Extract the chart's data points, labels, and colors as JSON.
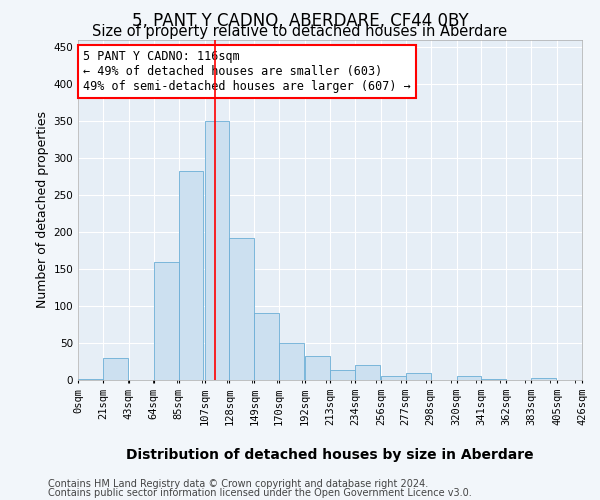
{
  "title": "5, PANT Y CADNO, ABERDARE, CF44 0BY",
  "subtitle": "Size of property relative to detached houses in Aberdare",
  "xlabel": "Distribution of detached houses by size in Aberdare",
  "ylabel": "Number of detached properties",
  "bar_values": [
    2,
    30,
    0,
    160,
    283,
    350,
    192,
    90,
    50,
    32,
    14,
    20,
    5,
    10,
    0,
    5,
    2,
    0,
    3
  ],
  "bin_edges": [
    0,
    21,
    43,
    64,
    85,
    107,
    128,
    149,
    170,
    192,
    213,
    234,
    256,
    277,
    298,
    320,
    341,
    362,
    383,
    405
  ],
  "tick_labels": [
    "0sqm",
    "21sqm",
    "43sqm",
    "64sqm",
    "85sqm",
    "107sqm",
    "128sqm",
    "149sqm",
    "170sqm",
    "192sqm",
    "213sqm",
    "234sqm",
    "256sqm",
    "277sqm",
    "298sqm",
    "320sqm",
    "341sqm",
    "362sqm",
    "383sqm",
    "405sqm",
    "426sqm"
  ],
  "bar_color": "#cce0f0",
  "bar_edge_color": "#6baed6",
  "vline_x": 116,
  "vline_color": "red",
  "ylim": [
    0,
    460
  ],
  "yticks": [
    0,
    50,
    100,
    150,
    200,
    250,
    300,
    350,
    400,
    450
  ],
  "annotation_title": "5 PANT Y CADNO: 116sqm",
  "annotation_line1": "← 49% of detached houses are smaller (603)",
  "annotation_line2": "49% of semi-detached houses are larger (607) →",
  "annotation_box_color": "red",
  "footer_line1": "Contains HM Land Registry data © Crown copyright and database right 2024.",
  "footer_line2": "Contains public sector information licensed under the Open Government Licence v3.0.",
  "bg_color": "#f2f6fa",
  "plot_bg_color": "#e6eef6",
  "grid_color": "white",
  "title_fontsize": 12,
  "subtitle_fontsize": 10.5,
  "ylabel_fontsize": 9,
  "xlabel_fontsize": 10,
  "tick_fontsize": 7.5,
  "annotation_fontsize": 8.5,
  "footer_fontsize": 7
}
